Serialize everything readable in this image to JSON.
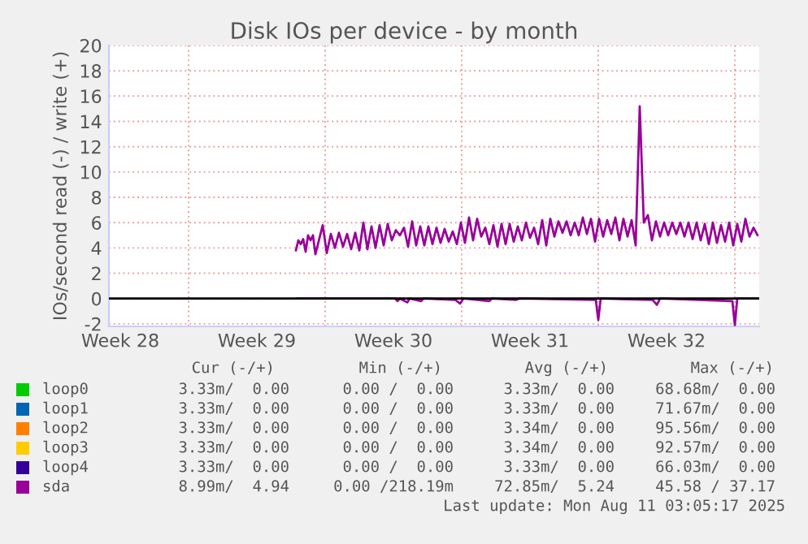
{
  "chart_data": {
    "type": "line",
    "title": "Disk IOs per device - by month",
    "ylabel": "IOs/second read (-) / write (+)",
    "xlim": [
      "2025-07-08T22:00",
      "2025-08-11T06:00"
    ],
    "ylim": [
      -2.2,
      20
    ],
    "xticks": [
      {
        "value": "2025-07-09T12:00",
        "label": "Week 28"
      },
      {
        "value": "2025-07-13",
        "label": null
      },
      {
        "value": "2025-07-16T12:00",
        "label": "Week 29"
      },
      {
        "value": "2025-07-20",
        "label": null
      },
      {
        "value": "2025-07-23T12:00",
        "label": "Week 30"
      },
      {
        "value": "2025-07-27",
        "label": null
      },
      {
        "value": "2025-07-30T12:00",
        "label": "Week 31"
      },
      {
        "value": "2025-08-03",
        "label": null
      },
      {
        "value": "2025-08-06T12:00",
        "label": "Week 32"
      },
      {
        "value": "2025-08-10",
        "label": null
      }
    ],
    "yticks": [
      -2,
      0,
      2,
      4,
      6,
      8,
      10,
      12,
      14,
      16,
      18,
      20
    ],
    "grid": true,
    "legend": "bottom",
    "ref_lines": [
      {
        "axis": "y",
        "value": 0,
        "color": "#000000"
      }
    ],
    "series": [
      {
        "name": "loop0",
        "color": "#00cc00"
      },
      {
        "name": "loop1",
        "color": "#0066b3"
      },
      {
        "name": "loop2",
        "color": "#ff8000"
      },
      {
        "name": "loop3",
        "color": "#ffcc00"
      },
      {
        "name": "loop4",
        "color": "#330099"
      },
      {
        "name": "sda",
        "color": "#990099",
        "x": [
          "2025-07-18T12:00",
          "2025-07-18T15:00",
          "2025-07-18T18:00",
          "2025-07-18T21:00",
          "2025-07-19T00:00",
          "2025-07-19T03:00",
          "2025-07-19T06:00",
          "2025-07-19T09:00",
          "2025-07-19T12:00",
          "2025-07-19T21:00",
          "2025-07-20T02:00",
          "2025-07-20T07:00",
          "2025-07-20T12:00",
          "2025-07-20T17:00",
          "2025-07-20T22:00",
          "2025-07-21T03:00",
          "2025-07-21T08:00",
          "2025-07-21T13:00",
          "2025-07-21T18:00",
          "2025-07-21T23:00",
          "2025-07-22T04:00",
          "2025-07-22T09:00",
          "2025-07-22T14:00",
          "2025-07-22T19:00",
          "2025-07-23T00:00",
          "2025-07-23T05:00",
          "2025-07-23T10:00",
          "2025-07-23T15:00",
          "2025-07-23T20:00",
          "2025-07-24T01:00",
          "2025-07-24T06:00",
          "2025-07-24T11:00",
          "2025-07-24T16:00",
          "2025-07-24T21:00",
          "2025-07-25T02:00",
          "2025-07-25T07:00",
          "2025-07-25T12:00",
          "2025-07-25T17:00",
          "2025-07-25T22:00",
          "2025-07-26T03:00",
          "2025-07-26T08:00",
          "2025-07-26T13:00",
          "2025-07-26T18:00",
          "2025-07-26T23:00",
          "2025-07-27T04:00",
          "2025-07-27T09:00",
          "2025-07-27T14:00",
          "2025-07-27T19:00",
          "2025-07-28T00:00",
          "2025-07-28T05:00",
          "2025-07-28T10:00",
          "2025-07-28T15:00",
          "2025-07-28T20:00",
          "2025-07-29T01:00",
          "2025-07-29T06:00",
          "2025-07-29T11:00",
          "2025-07-29T16:00",
          "2025-07-29T21:00",
          "2025-07-30T02:00",
          "2025-07-30T07:00",
          "2025-07-30T12:00",
          "2025-07-30T17:00",
          "2025-07-30T22:00",
          "2025-07-31T03:00",
          "2025-07-31T08:00",
          "2025-07-31T13:00",
          "2025-07-31T18:00",
          "2025-07-31T23:00",
          "2025-08-01T04:00",
          "2025-08-01T09:00",
          "2025-08-01T14:00",
          "2025-08-01T19:00",
          "2025-08-02T00:00",
          "2025-08-02T05:00",
          "2025-08-02T10:00",
          "2025-08-02T15:00",
          "2025-08-02T20:00",
          "2025-08-03T01:00",
          "2025-08-03T06:00",
          "2025-08-03T11:00",
          "2025-08-03T16:00",
          "2025-08-03T21:00",
          "2025-08-04T02:00",
          "2025-08-04T07:00",
          "2025-08-04T12:00",
          "2025-08-04T17:00",
          "2025-08-04T22:00",
          "2025-08-05T03:00",
          "2025-08-05T08:00",
          "2025-08-05T13:00",
          "2025-08-05T18:00",
          "2025-08-05T23:00",
          "2025-08-06T04:00",
          "2025-08-06T09:00",
          "2025-08-06T14:00",
          "2025-08-06T19:00",
          "2025-08-07T00:00",
          "2025-08-07T05:00",
          "2025-08-07T10:00",
          "2025-08-07T15:00",
          "2025-08-07T20:00",
          "2025-08-08T01:00",
          "2025-08-08T06:00",
          "2025-08-08T11:00",
          "2025-08-08T16:00",
          "2025-08-08T21:00",
          "2025-08-09T02:00",
          "2025-08-09T07:00",
          "2025-08-09T12:00",
          "2025-08-09T17:00",
          "2025-08-09T22:00",
          "2025-08-10T03:00",
          "2025-08-10T08:00",
          "2025-08-10T13:00",
          "2025-08-10T18:00",
          "2025-08-10T23:00",
          "2025-08-11T04:00"
        ],
        "values": [
          3.8,
          4.6,
          4.3,
          4.7,
          3.7,
          5.0,
          4.6,
          5.0,
          3.5,
          5.8,
          3.6,
          5.1,
          4.0,
          5.2,
          4.1,
          5.1,
          3.9,
          5.2,
          3.8,
          6.0,
          3.9,
          5.7,
          4.0,
          5.8,
          4.2,
          5.9,
          4.6,
          5.4,
          5.0,
          5.6,
          4.1,
          6.1,
          4.2,
          5.7,
          4.2,
          5.7,
          4.3,
          5.6,
          4.4,
          5.5,
          4.5,
          5.3,
          4.3,
          6.0,
          4.4,
          6.4,
          4.6,
          6.3,
          4.9,
          5.6,
          4.3,
          5.8,
          4.1,
          5.9,
          4.3,
          5.9,
          4.5,
          5.7,
          4.6,
          6.0,
          4.8,
          5.6,
          4.3,
          6.2,
          4.2,
          6.3,
          4.9,
          6.1,
          5.2,
          6.1,
          5.0,
          6.0,
          5.0,
          6.4,
          5.1,
          6.3,
          4.5,
          6.3,
          4.9,
          6.2,
          5.1,
          6.4,
          4.6,
          6.3,
          4.9,
          6.2,
          4.2,
          15.2,
          6.0,
          6.6,
          4.6,
          6.1,
          4.9,
          6.0,
          5.0,
          6.0,
          5.1,
          6.0,
          4.9,
          6.0,
          4.7,
          6.0,
          4.6,
          5.9,
          4.3,
          6.0,
          4.4,
          5.8,
          4.5,
          6.0,
          4.2,
          5.9,
          4.5,
          6.3,
          4.9,
          5.6,
          5.0
        ]
      },
      {
        "color": "#990099",
        "x": [
          "2025-07-18T13:00",
          "2025-07-23T14:00",
          "2025-07-23T17:00",
          "2025-07-23T20:00",
          "2025-07-24T05:00",
          "2025-07-24T08:00",
          "2025-07-24T22:00",
          "2025-07-25T01:00",
          "2025-07-26T16:00",
          "2025-07-26T22:00",
          "2025-07-27T02:00",
          "2025-07-28T10:00",
          "2025-07-28T13:00",
          "2025-07-29T19:00",
          "2025-07-29T23:00",
          "2025-08-02T21:00",
          "2025-08-03T00:00",
          "2025-08-03T03:00",
          "2025-08-05T19:00",
          "2025-08-06T00:00",
          "2025-08-06T04:00",
          "2025-08-09T21:00",
          "2025-08-10T00:00",
          "2025-08-10T03:00",
          "2025-08-11T04:00"
        ],
        "values": [
          0,
          0,
          -0.2,
          0,
          -0.3,
          0,
          -0.2,
          0,
          -0.1,
          -0.4,
          0,
          -0.2,
          0,
          -0.1,
          0,
          -0.1,
          -1.7,
          0,
          -0.1,
          -0.5,
          0,
          -0.2,
          -2.1,
          0,
          0
        ]
      }
    ],
    "annotations": [
      "Cur (-/+)",
      "Min (-/+)",
      "Avg (-/+)",
      "Max (-/+)",
      "3.33m/  0.00",
      "0.00 /  0.00",
      "3.33m/  0.00",
      "68.68m/  0.00",
      "3.33m/  0.00",
      "0.00 /  0.00",
      "3.33m/  0.00",
      "71.67m/  0.00",
      "3.33m/  0.00",
      "0.00 /  0.00",
      "3.34m/  0.00",
      "95.56m/  0.00",
      "3.33m/  0.00",
      "0.00 /  0.00",
      "3.34m/  0.00",
      "92.57m/  0.00",
      "3.33m/  0.00",
      "0.00 /  0.00",
      "3.33m/  0.00",
      "66.03m/  0.00",
      "8.99m/  4.94",
      "0.00 /218.19m",
      "72.85m/  5.24",
      "45.58 / 37.17",
      "Last update: Mon Aug 11 03:05:17 2025"
    ]
  }
}
